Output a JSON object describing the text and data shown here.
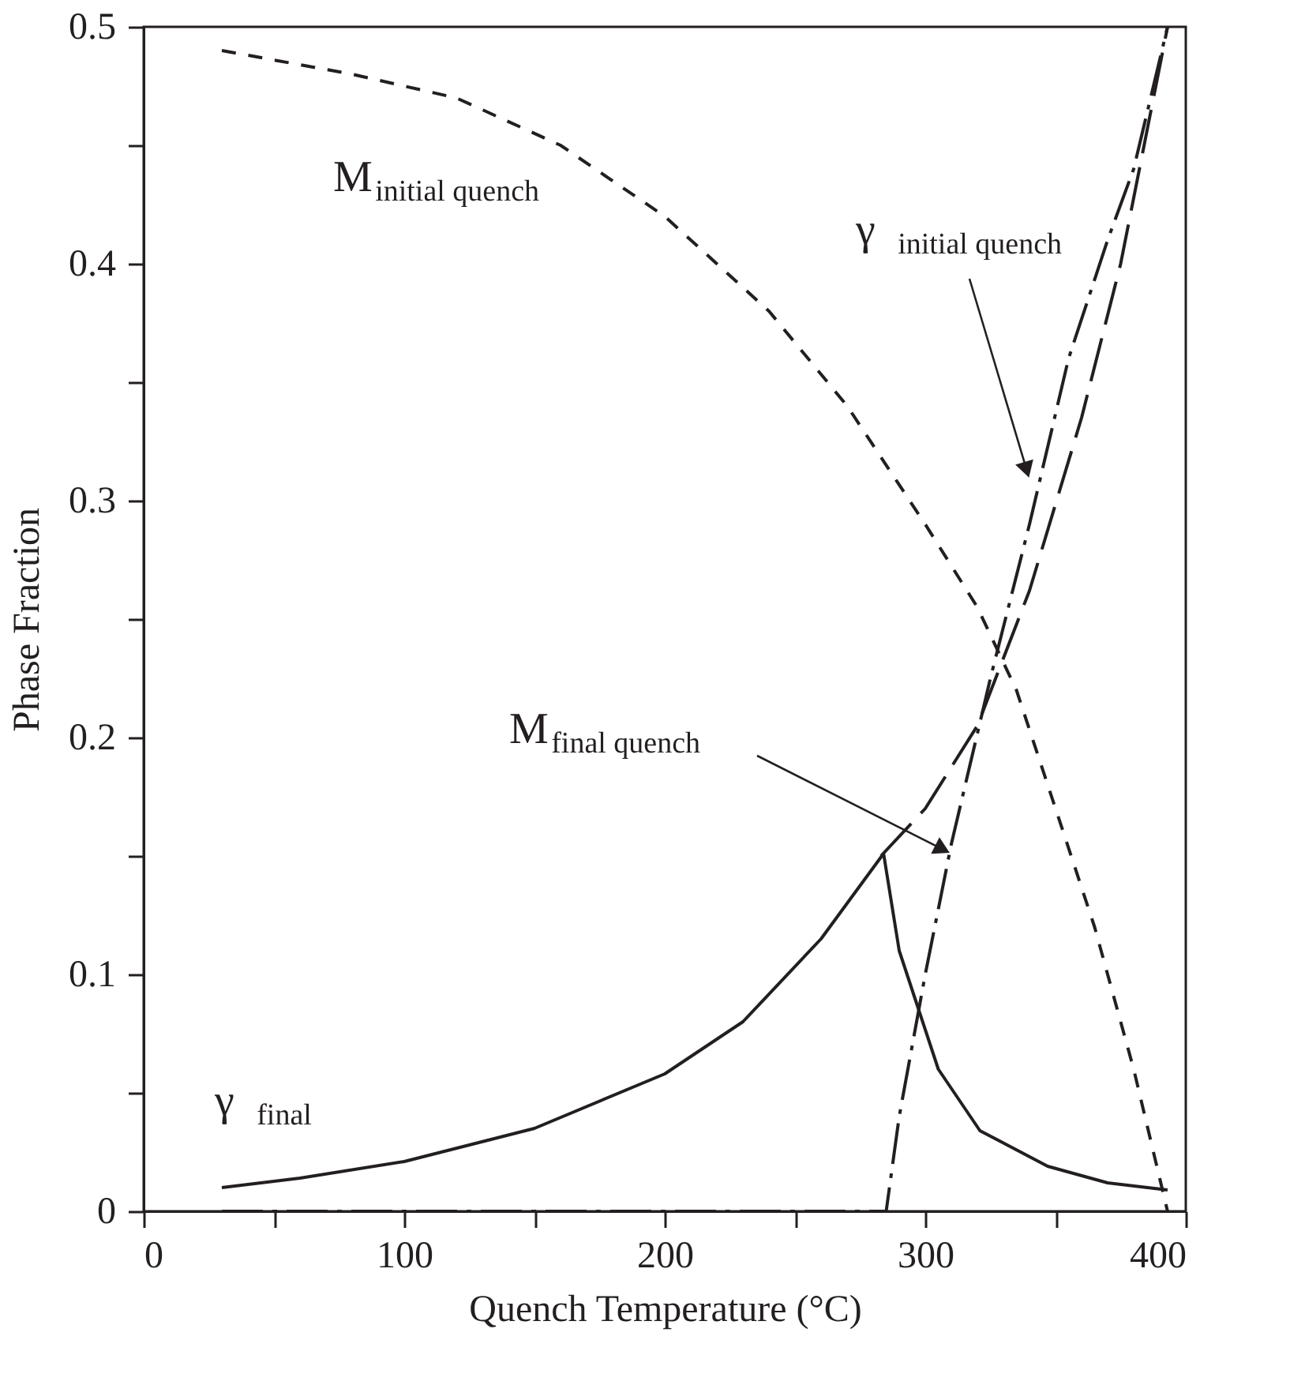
{
  "chart_data": {
    "type": "line",
    "xlabel": "Quench Temperature (°C)",
    "ylabel": "Phase Fraction",
    "xlim": [
      0,
      400
    ],
    "ylim": [
      0,
      0.5
    ],
    "xticks": [
      0,
      {
        "value": 50,
        "label": null
      },
      100,
      {
        "value": 150,
        "label": null
      },
      200,
      {
        "value": 250,
        "label": null
      },
      300,
      {
        "value": 350,
        "label": null
      },
      400
    ],
    "yticks": [
      0,
      {
        "value": 0.05,
        "label": null
      },
      0.1,
      {
        "value": 0.15,
        "label": null
      },
      0.2,
      {
        "value": 0.25,
        "label": null
      },
      0.3,
      {
        "value": 0.35,
        "label": null
      },
      0.4,
      {
        "value": 0.45,
        "label": null
      },
      0.5
    ],
    "grid": false,
    "marker": "none",
    "series": [
      {
        "color": "#231f20",
        "line_style": "dashed",
        "x": [
          30,
          80,
          120,
          160,
          200,
          240,
          270,
          300,
          320,
          335,
          350,
          365,
          380,
          393
        ],
        "values": [
          0.49,
          0.48,
          0.47,
          0.45,
          0.42,
          0.38,
          0.34,
          0.29,
          0.255,
          0.22,
          0.17,
          0.12,
          0.06,
          0
        ]
      },
      {
        "color": "#231f20",
        "line_style": "dashed",
        "x": [
          283,
          300,
          320,
          340,
          360,
          375,
          393
        ],
        "values": [
          0.15,
          0.17,
          0.205,
          0.262,
          0.335,
          0.4,
          0.5
        ]
      },
      {
        "color": "#231f20",
        "line_style": "dashed",
        "x": [
          30,
          285,
          290,
          300,
          310,
          325,
          340,
          355,
          370,
          380,
          393
        ],
        "values": [
          0,
          0,
          0.04,
          0.1,
          0.155,
          0.225,
          0.29,
          0.36,
          0.41,
          0.44,
          0.5
        ]
      },
      {
        "color": "#231f20",
        "line_style": "solid",
        "x": [
          30,
          60,
          100,
          150,
          200,
          230,
          260,
          284,
          290,
          296,
          305,
          321,
          347,
          370,
          393
        ],
        "values": [
          0.01,
          0.014,
          0.021,
          0.035,
          0.058,
          0.08,
          0.115,
          0.151,
          0.11,
          0.09,
          0.06,
          0.034,
          0.019,
          0.012,
          0.009
        ]
      }
    ],
    "annotations": [
      "M$_{initial quench}$",
      {
        "text": "γ$_{initial quench}$",
        "x": 340,
        "y": 0.309
      },
      {
        "text": "M$_{final quench}$",
        "x": 310,
        "y": 0.151
      },
      "γ$_{final}$"
    ]
  }
}
